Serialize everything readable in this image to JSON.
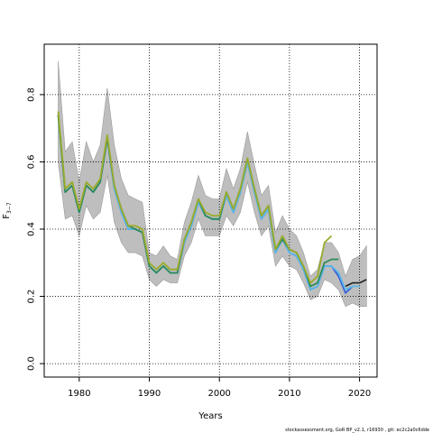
{
  "chart_data": {
    "type": "line",
    "title": "",
    "xlabel": "Years",
    "ylabel": "F3-7",
    "ylabel_main": "F",
    "ylabel_sub": "3−7",
    "xlim": [
      1975,
      2022.5
    ],
    "ylim": [
      -0.04,
      0.95
    ],
    "xticks": [
      1980,
      1990,
      2000,
      2010,
      2020
    ],
    "xtick_labels": [
      "1980",
      "1990",
      "2000",
      "2010",
      "2020"
    ],
    "yticks": [
      0.0,
      0.2,
      0.4,
      0.6,
      0.8
    ],
    "ytick_labels": [
      "0.0",
      "0.2",
      "0.4",
      "0.6",
      "0.8"
    ],
    "grid": true,
    "grid_style": "dotted",
    "footer": "stockassessment.org, GoR BP_v2.1, r16930 , git: ec2c2a0c6dde",
    "band": {
      "years": [
        1977,
        1978,
        1979,
        1980,
        1981,
        1982,
        1983,
        1984,
        1985,
        1986,
        1987,
        1988,
        1989,
        1990,
        1991,
        1992,
        1993,
        1994,
        1995,
        1996,
        1997,
        1998,
        1999,
        2000,
        2001,
        2002,
        2003,
        2004,
        2005,
        2006,
        2007,
        2008,
        2009,
        2010,
        2011,
        2012,
        2013,
        2014,
        2015,
        2016,
        2017,
        2018,
        2019,
        2020,
        2021
      ],
      "upper": [
        0.9,
        0.63,
        0.66,
        0.54,
        0.66,
        0.6,
        0.65,
        0.82,
        0.65,
        0.55,
        0.5,
        0.49,
        0.48,
        0.33,
        0.32,
        0.35,
        0.32,
        0.31,
        0.42,
        0.48,
        0.56,
        0.5,
        0.49,
        0.49,
        0.58,
        0.52,
        0.58,
        0.69,
        0.59,
        0.5,
        0.53,
        0.39,
        0.44,
        0.4,
        0.38,
        0.33,
        0.26,
        0.28,
        0.36,
        0.36,
        0.33,
        0.26,
        0.31,
        0.32,
        0.35
      ],
      "lower": [
        0.6,
        0.43,
        0.44,
        0.38,
        0.47,
        0.43,
        0.45,
        0.56,
        0.42,
        0.36,
        0.33,
        0.33,
        0.32,
        0.25,
        0.23,
        0.25,
        0.24,
        0.24,
        0.32,
        0.36,
        0.43,
        0.38,
        0.38,
        0.38,
        0.44,
        0.41,
        0.45,
        0.54,
        0.45,
        0.38,
        0.41,
        0.29,
        0.32,
        0.29,
        0.28,
        0.24,
        0.19,
        0.2,
        0.25,
        0.24,
        0.22,
        0.17,
        0.18,
        0.17,
        0.17
      ]
    },
    "series": [
      {
        "color": "#3b5fd9",
        "x": [
          1977,
          1978,
          1979,
          1980,
          1981,
          1982,
          1983,
          1984,
          1985,
          1986,
          1987,
          1988,
          1989,
          1990,
          1991,
          1992,
          1993,
          1994,
          1995,
          1996,
          1997,
          1998,
          1999,
          2000,
          2001,
          2002,
          2003,
          2004,
          2005,
          2006,
          2007,
          2008,
          2009,
          2010,
          2011,
          2012,
          2013,
          2014,
          2015,
          2016,
          2017,
          2018,
          2019
        ],
        "y": [
          0.74,
          0.51,
          0.53,
          0.45,
          0.53,
          0.51,
          0.54,
          0.67,
          0.52,
          0.45,
          0.4,
          0.4,
          0.39,
          0.29,
          0.27,
          0.29,
          0.27,
          0.27,
          0.36,
          0.41,
          0.48,
          0.44,
          0.43,
          0.43,
          0.5,
          0.45,
          0.51,
          0.6,
          0.51,
          0.43,
          0.46,
          0.33,
          0.37,
          0.33,
          0.32,
          0.28,
          0.22,
          0.23,
          0.29,
          0.29,
          0.26,
          0.21,
          0.23
        ]
      },
      {
        "color": "#5ab8e6",
        "x": [
          1977,
          1978,
          1979,
          1980,
          1981,
          1982,
          1983,
          1984,
          1985,
          1986,
          1987,
          1988,
          1989,
          1990,
          1991,
          1992,
          1993,
          1994,
          1995,
          1996,
          1997,
          1998,
          1999,
          2000,
          2001,
          2002,
          2003,
          2004,
          2005,
          2006,
          2007,
          2008,
          2009,
          2010,
          2011,
          2012,
          2013,
          2014,
          2015,
          2016,
          2017,
          2018,
          2019,
          2020
        ],
        "y": [
          0.74,
          0.51,
          0.53,
          0.45,
          0.53,
          0.51,
          0.54,
          0.67,
          0.52,
          0.45,
          0.4,
          0.4,
          0.39,
          0.29,
          0.27,
          0.29,
          0.27,
          0.27,
          0.36,
          0.41,
          0.48,
          0.44,
          0.43,
          0.43,
          0.5,
          0.45,
          0.51,
          0.6,
          0.51,
          0.43,
          0.46,
          0.33,
          0.37,
          0.33,
          0.32,
          0.28,
          0.22,
          0.23,
          0.29,
          0.29,
          0.27,
          0.22,
          0.23,
          0.23
        ]
      },
      {
        "color": "#2e8b57",
        "x": [
          1977,
          1978,
          1979,
          1980,
          1981,
          1982,
          1983,
          1984,
          1985,
          1986,
          1987,
          1988,
          1989,
          1990,
          1991,
          1992,
          1993,
          1994,
          1995,
          1996,
          1997,
          1998,
          1999,
          2000,
          2001,
          2002,
          2003,
          2004,
          2005,
          2006,
          2007,
          2008,
          2009,
          2010,
          2011,
          2012,
          2013,
          2014,
          2015,
          2016,
          2017
        ],
        "y": [
          0.74,
          0.51,
          0.53,
          0.45,
          0.53,
          0.51,
          0.54,
          0.67,
          0.53,
          0.46,
          0.41,
          0.4,
          0.39,
          0.29,
          0.27,
          0.29,
          0.27,
          0.27,
          0.37,
          0.42,
          0.49,
          0.44,
          0.43,
          0.43,
          0.51,
          0.46,
          0.52,
          0.61,
          0.52,
          0.44,
          0.47,
          0.34,
          0.37,
          0.34,
          0.33,
          0.29,
          0.23,
          0.24,
          0.3,
          0.31,
          0.31
        ]
      },
      {
        "color": "#9aab2c",
        "x": [
          1977,
          1978,
          1979,
          1980,
          1981,
          1982,
          1983,
          1984,
          1985,
          1986,
          1987,
          1988,
          1989,
          1990,
          1991,
          1992,
          1993,
          1994,
          1995,
          1996,
          1997,
          1998,
          1999,
          2000,
          2001,
          2002,
          2003,
          2004,
          2005,
          2006,
          2007,
          2008,
          2009,
          2010,
          2011,
          2012,
          2013,
          2014,
          2015,
          2016
        ],
        "y": [
          0.75,
          0.52,
          0.54,
          0.46,
          0.54,
          0.52,
          0.55,
          0.68,
          0.53,
          0.46,
          0.41,
          0.41,
          0.4,
          0.3,
          0.28,
          0.3,
          0.28,
          0.28,
          0.37,
          0.42,
          0.49,
          0.45,
          0.44,
          0.44,
          0.51,
          0.46,
          0.52,
          0.61,
          0.52,
          0.44,
          0.47,
          0.34,
          0.38,
          0.34,
          0.33,
          0.29,
          0.24,
          0.26,
          0.36,
          0.38
        ]
      },
      {
        "color": "#222222",
        "x": [
          2018,
          2019,
          2020,
          2021
        ],
        "y": [
          0.23,
          0.24,
          0.24,
          0.25
        ]
      }
    ]
  }
}
